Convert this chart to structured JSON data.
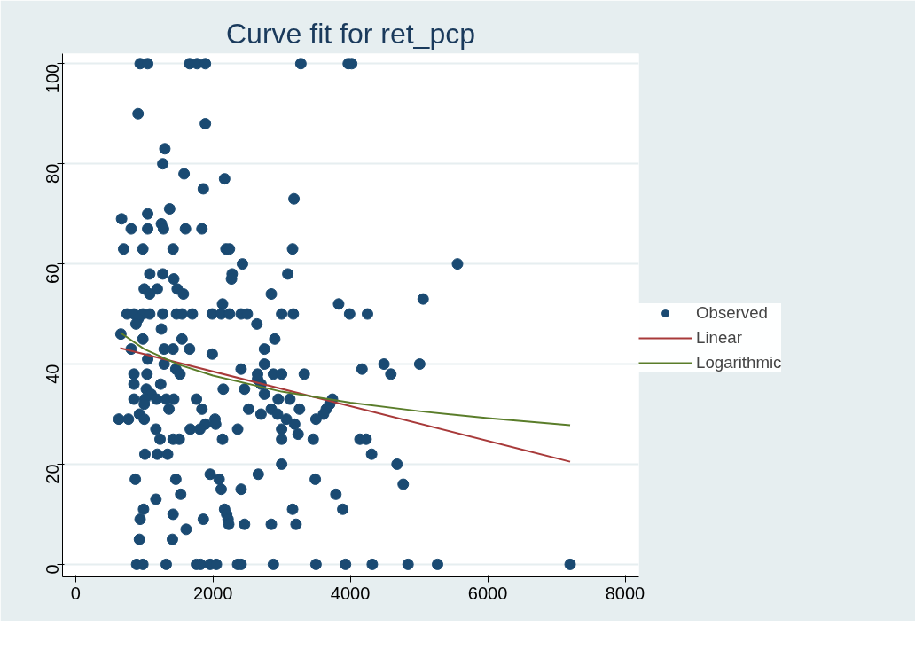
{
  "chart_data": {
    "type": "scatter",
    "title": "Curve fit for ret_pcp",
    "xlim": [
      -190,
      8200
    ],
    "ylim": [
      -2.5,
      102
    ],
    "xticks": [
      0,
      2000,
      4000,
      6000,
      8000
    ],
    "yticks": [
      0,
      20,
      40,
      60,
      80,
      100
    ],
    "grid": "y",
    "legend": "right",
    "series": [
      {
        "name": "Observed",
        "marker": "circle",
        "color": "#1a4a72",
        "x": [
          940,
          1050,
          1660,
          1770,
          1890,
          3280,
          3970,
          4020,
          910,
          1890,
          1300,
          1270,
          1580,
          2170,
          1860,
          3180,
          1370,
          1050,
          670,
          1250,
          810,
          1050,
          1280,
          1600,
          1840,
          700,
          980,
          1420,
          2190,
          2240,
          3160,
          2430,
          5560,
          1080,
          1270,
          2280,
          3090,
          1430,
          2270,
          1000,
          1190,
          1480,
          1080,
          1570,
          2850,
          5060,
          2140,
          3830,
          750,
          850,
          980,
          1080,
          1270,
          1470,
          1550,
          1700,
          1990,
          2120,
          2240,
          2410,
          2500,
          3000,
          3170,
          3990,
          4250,
          910,
          2640,
          880,
          1250,
          660,
          980,
          1550,
          2900,
          810,
          1290,
          1420,
          1660,
          2750,
          1990,
          1050,
          1290,
          2750,
          4490,
          5010,
          1460,
          2410,
          4170,
          850,
          1040,
          1520,
          2650,
          2880,
          3000,
          3330,
          4590,
          2650,
          850,
          1240,
          2700,
          1030,
          2150,
          2460,
          1100,
          2750,
          850,
          1010,
          1180,
          1320,
          1430,
          1760,
          2950,
          3120,
          3740,
          1000,
          3700,
          1360,
          1840,
          2520,
          2850,
          3260,
          3650,
          930,
          2700,
          2940,
          3610,
          630,
          770,
          1000,
          2030,
          3070,
          3500,
          1890,
          2040,
          3190,
          1170,
          1670,
          1810,
          2360,
          3000,
          3240,
          1230,
          1420,
          1510,
          2140,
          3000,
          3460,
          4140,
          4230,
          1010,
          1190,
          1340,
          4310,
          3000,
          4680,
          1960,
          2660,
          870,
          1460,
          2090,
          3490,
          4770,
          2120,
          2410,
          1530,
          3790,
          1170,
          990,
          2170,
          3160,
          3890,
          1420,
          2200,
          940,
          1860,
          2220,
          2230,
          2460,
          2850,
          3210,
          1610,
          930,
          1410,
          890,
          980,
          1320,
          1760,
          1820,
          1960,
          2050,
          2360,
          2410,
          2880,
          3500,
          3930,
          4320,
          4840,
          5270,
          7200
        ],
        "values": [
          100,
          100,
          100,
          100,
          100,
          100,
          100,
          100,
          90,
          88,
          83,
          80,
          78,
          77,
          75,
          73,
          71,
          70,
          69,
          68,
          67,
          67,
          67,
          67,
          67,
          63,
          63,
          63,
          63,
          63,
          63,
          60,
          60,
          58,
          58,
          58,
          58,
          57,
          57,
          55,
          55,
          55,
          54,
          54,
          54,
          53,
          52,
          52,
          50,
          50,
          50,
          50,
          50,
          50,
          50,
          50,
          50,
          50,
          50,
          50,
          50,
          50,
          50,
          50,
          50,
          49,
          48,
          48,
          47,
          46,
          45,
          45,
          45,
          43,
          43,
          43,
          43,
          43,
          42,
          41,
          40,
          40,
          40,
          40,
          39,
          39,
          39,
          38,
          38,
          38,
          38,
          38,
          38,
          38,
          38,
          37,
          36,
          36,
          36,
          35,
          35,
          35,
          34,
          34,
          33,
          33,
          33,
          33,
          33,
          33,
          33,
          33,
          33,
          32,
          32,
          31,
          31,
          31,
          31,
          31,
          31,
          30,
          30,
          30,
          30,
          29,
          29,
          29,
          29,
          29,
          29,
          28,
          28,
          28,
          27,
          27,
          27,
          27,
          27,
          26,
          25,
          25,
          25,
          25,
          25,
          25,
          25,
          25,
          22,
          22,
          22,
          22,
          20,
          20,
          18,
          18,
          17,
          17,
          17,
          17,
          16,
          15,
          15,
          14,
          14,
          13,
          11,
          11,
          11,
          11,
          10,
          10,
          9,
          9,
          9,
          8,
          8,
          8,
          8,
          7,
          5,
          5,
          0,
          0,
          0,
          0,
          0,
          0,
          0,
          0,
          0,
          0,
          0,
          0,
          0,
          0,
          0,
          0
        ]
      },
      {
        "name": "Linear",
        "type": "line",
        "color": "#a83a3a",
        "x": [
          650,
          7200
        ],
        "values": [
          43.2,
          20.5
        ]
      },
      {
        "name": "Logarithmic",
        "type": "line",
        "color": "#5a7d2a",
        "x": [
          650,
          1000,
          1500,
          2000,
          3000,
          4000,
          5000,
          6000,
          7200
        ],
        "values": [
          46.3,
          43.0,
          39.9,
          37.7,
          34.5,
          32.3,
          30.6,
          29.2,
          27.8
        ]
      }
    ]
  }
}
